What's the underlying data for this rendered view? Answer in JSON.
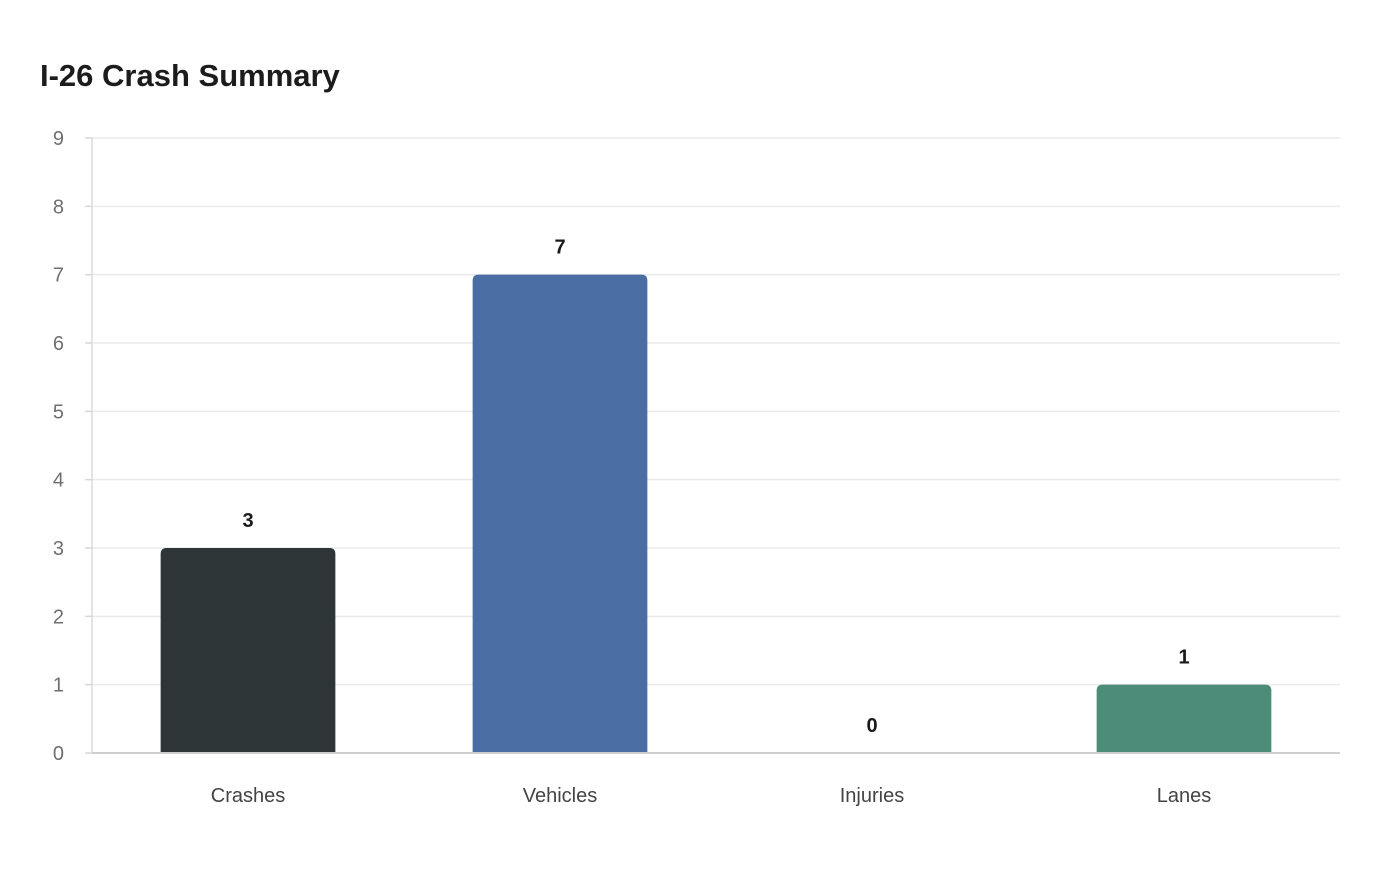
{
  "chart_data": {
    "type": "bar",
    "title": "I-26 Crash Summary",
    "xlabel": "",
    "ylabel": "",
    "categories": [
      "Crashes",
      "Vehicles",
      "Injuries",
      "Lanes"
    ],
    "values": [
      3,
      7,
      0,
      1
    ],
    "colors": [
      "#2e3537",
      "#4a6ea3",
      "#4a6ea3",
      "#4e8c7a"
    ],
    "ylim": [
      0,
      9
    ],
    "yticks": [
      0,
      1,
      2,
      3,
      4,
      5,
      6,
      7,
      8,
      9
    ],
    "grid": true,
    "legend": "none"
  }
}
